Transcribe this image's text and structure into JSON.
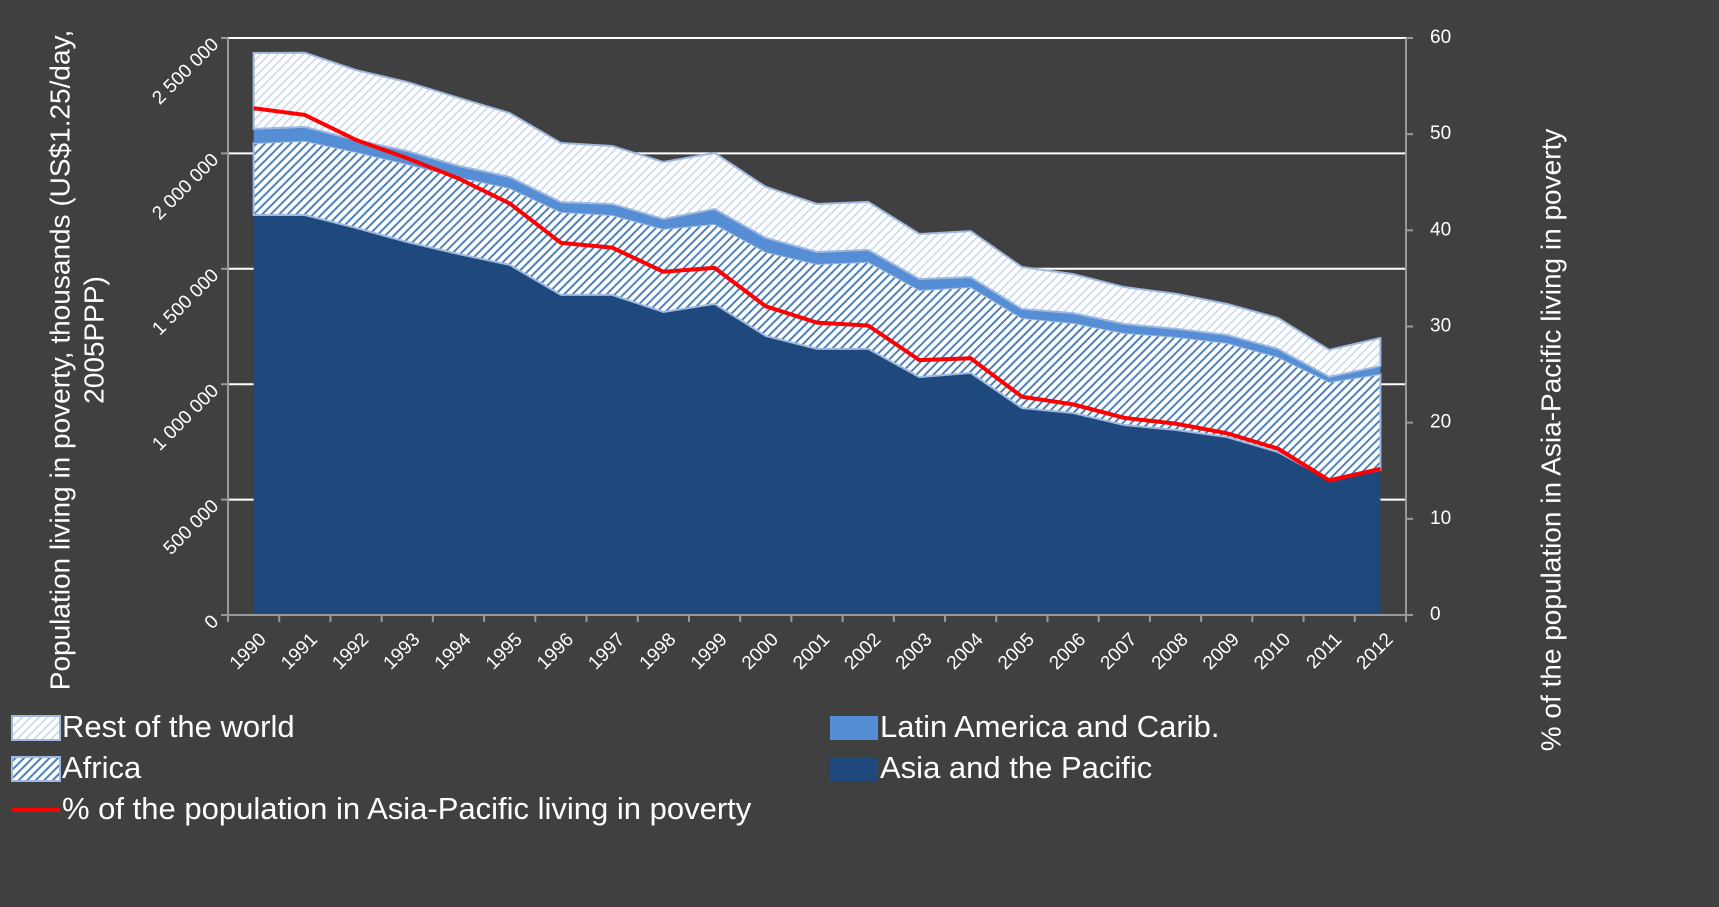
{
  "chart_data": {
    "type": "stacked-area",
    "ylabel": [
      "Population living in poverty, thousands (US$1.25/day,",
      "2005PPP)"
    ],
    "y2label": "% of the population in Asia-Pacific living in poverty",
    "categories": [
      "1990",
      "1991",
      "1992",
      "1993",
      "1994",
      "1995",
      "1996",
      "1997",
      "1998",
      "1999",
      "2000",
      "2001",
      "2002",
      "2003",
      "2004",
      "2005",
      "2006",
      "2007",
      "2008",
      "2009",
      "2010",
      "2011",
      "2012"
    ],
    "series": [
      {
        "name": "Rest of the world",
        "color": "#dbe5f1",
        "pattern": true,
        "values": [
          329000,
          321000,
          303000,
          299000,
          295000,
          277000,
          256000,
          251000,
          247000,
          243000,
          221000,
          208000,
          208000,
          195000,
          199000,
          182000,
          169000,
          160000,
          152000,
          134000,
          134000,
          117000,
          121000
        ]
      },
      {
        "name": "Latin America and Carib.",
        "color": "#558ed5",
        "pattern": false,
        "values": [
          61000,
          61000,
          52000,
          56000,
          48000,
          48000,
          43000,
          48000,
          43000,
          65000,
          61000,
          52000,
          52000,
          48000,
          43000,
          39000,
          43000,
          39000,
          35000,
          35000,
          35000,
          22000,
          35000
        ]
      },
      {
        "name": "Africa",
        "color": "#4f81bd",
        "pattern": true,
        "values": [
          312000,
          321000,
          329000,
          338000,
          334000,
          333000,
          359000,
          346000,
          360000,
          346000,
          364000,
          368000,
          377000,
          377000,
          372000,
          390000,
          390000,
          399000,
          403000,
          408000,
          412000,
          425000,
          416000
        ]
      },
      {
        "name": "Asia and the Pacific",
        "color": "#1f497d",
        "pattern": false,
        "values": [
          1733000,
          1733000,
          1677000,
          1616000,
          1564000,
          1517000,
          1387000,
          1387000,
          1313000,
          1348000,
          1209000,
          1153000,
          1153000,
          1031000,
          1049000,
          897000,
          875000,
          823000,
          802000,
          771000,
          706000,
          585000,
          628000
        ]
      },
      {
        "name": "% of the population in Asia-Pacific living in poverty",
        "color": "#ff0000",
        "axis": "y2",
        "chart": "line",
        "values": [
          52.7,
          52.0,
          49.4,
          47.5,
          45.4,
          42.8,
          38.7,
          38.2,
          35.7,
          36.1,
          32.1,
          30.4,
          30.1,
          26.5,
          26.7,
          22.7,
          21.9,
          20.5,
          19.9,
          18.9,
          17.3,
          14.0,
          15.2
        ]
      }
    ],
    "ylim": [
      0,
      2500000
    ],
    "yticks": [
      0,
      {
        "value": 500000,
        "label": "500 000"
      },
      {
        "value": 1000000,
        "label": "1 000 000"
      },
      {
        "value": 1500000,
        "label": "1 500 000"
      },
      {
        "value": 2000000,
        "label": "2 000 000"
      },
      {
        "value": 2500000,
        "label": "2 500 000"
      }
    ],
    "y2lim": [
      0,
      60
    ],
    "y2ticks": [
      0,
      10,
      20,
      30,
      40,
      50,
      60
    ],
    "grid": true,
    "legend": "bottom"
  }
}
